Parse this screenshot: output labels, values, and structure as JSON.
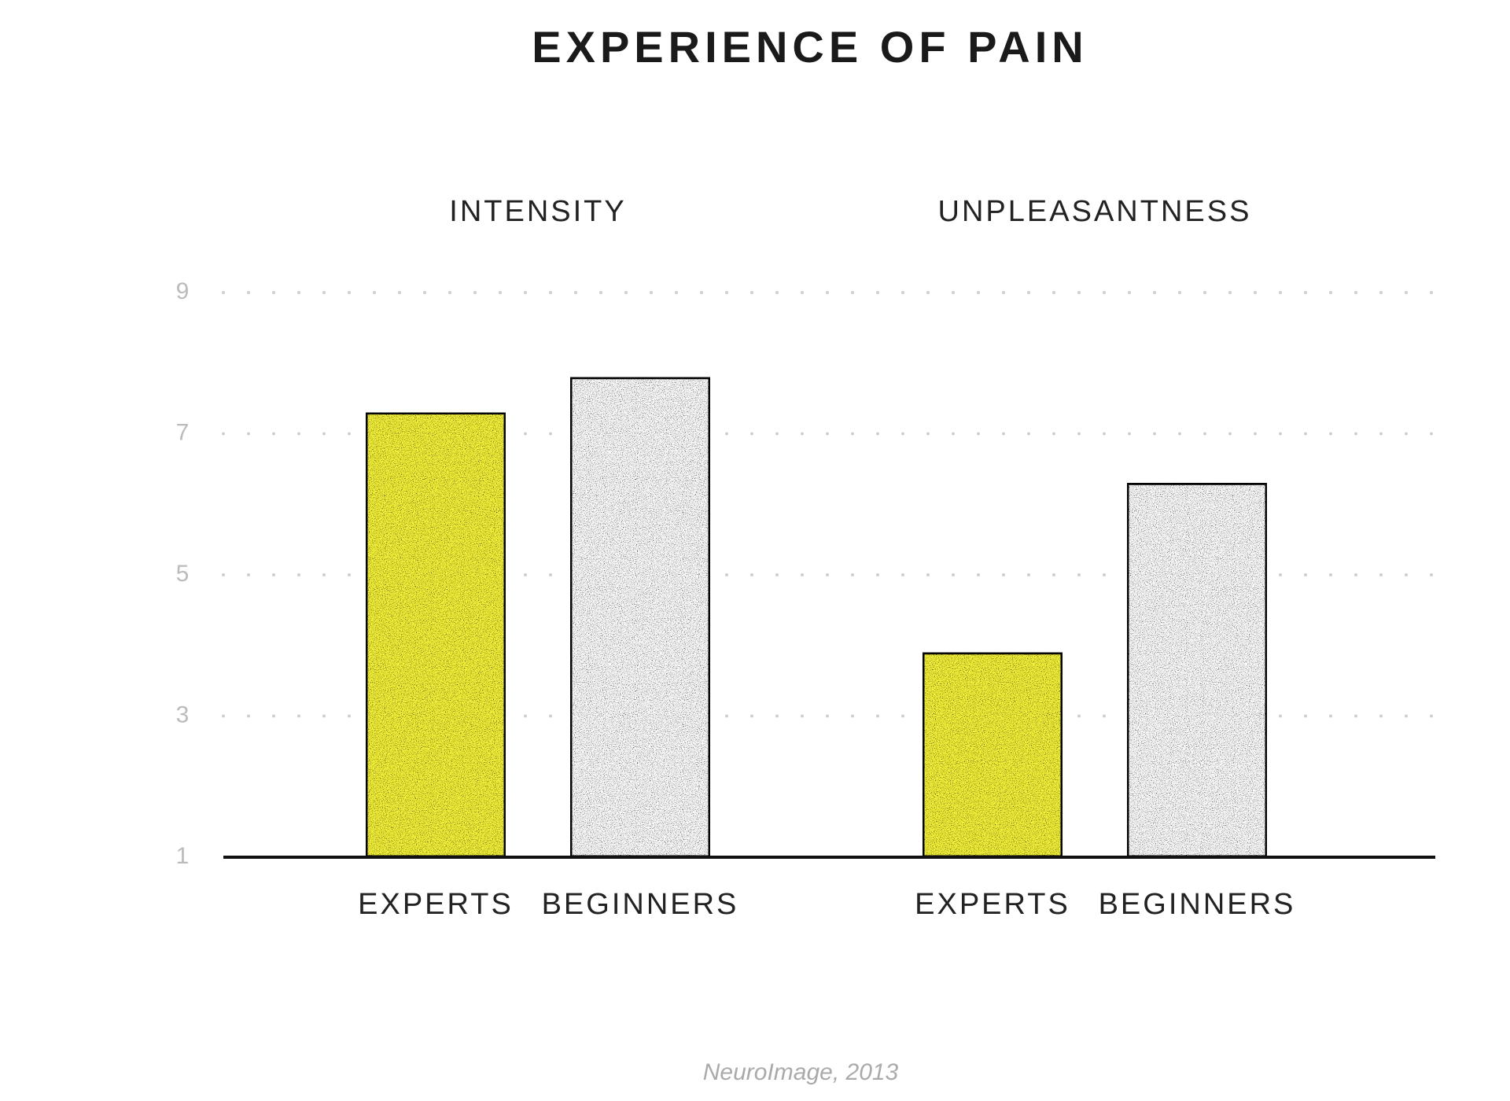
{
  "chart_data": {
    "type": "grouped-bar",
    "title": "EXPERIENCE OF PAIN",
    "source": "NeuroImage, 2013",
    "ylim": [
      1,
      9
    ],
    "yticks": [
      1,
      3,
      5,
      7,
      9
    ],
    "grid": true,
    "colors": [
      "#f6f43a",
      "#ffffff"
    ],
    "panels": [
      {
        "title": "INTENSITY",
        "categories": [
          "EXPERTS",
          "BEGINNERS"
        ],
        "values": [
          7.3,
          7.8
        ]
      },
      {
        "title": "UNPLEASANTNESS",
        "categories": [
          "EXPERTS",
          "BEGINNERS"
        ],
        "values": [
          3.9,
          6.3
        ]
      }
    ]
  }
}
